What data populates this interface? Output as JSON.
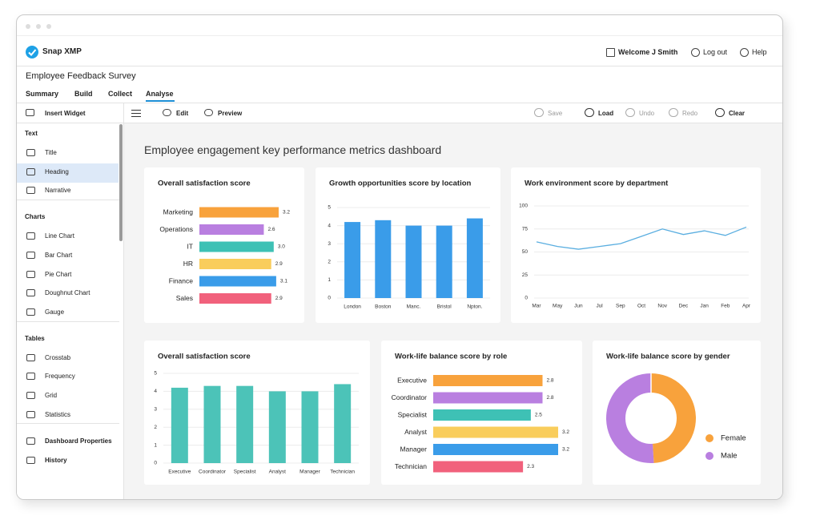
{
  "app": {
    "brand": "Snap XMP",
    "nav": [
      "Welcome J Smith",
      "Log out",
      "Help"
    ],
    "survey_title": "Employee Feedback Survey",
    "tabs": [
      "Summary",
      "Build",
      "Collect",
      "Analyse"
    ],
    "active_tab": "Analyse"
  },
  "toolbar": {
    "insert": "Insert Widget",
    "left": [
      "Edit",
      "Preview"
    ],
    "right": [
      "Save",
      "Load",
      "Undo",
      "Redo",
      "Clear"
    ],
    "disabled": [
      "Save",
      "Undo",
      "Redo"
    ]
  },
  "sidebar": {
    "sections": [
      {
        "title": "Text",
        "items": [
          "Title",
          "Heading",
          "Narrative"
        ]
      },
      {
        "title": "Charts",
        "items": [
          "Line Chart",
          "Bar Chart",
          "Pie Chart",
          "Doughnut Chart",
          "Gauge"
        ]
      },
      {
        "title": "Tables",
        "items": [
          "Crosstab",
          "Frequency",
          "Grid",
          "Statistics"
        ]
      }
    ],
    "selected": "Heading",
    "footer": [
      "Dashboard Properties",
      "History"
    ]
  },
  "dashboard": {
    "title": "Employee engagement key performance metrics dashboard"
  },
  "chart_data": [
    {
      "type": "hbar",
      "title": "Overall satisfaction score",
      "categories": [
        "Marketing",
        "Operations",
        "IT",
        "HR",
        "Finance",
        "Sales"
      ],
      "values": [
        3.2,
        2.6,
        3.0,
        2.9,
        3.1,
        2.9
      ],
      "value_labels": [
        "3.2",
        "2.6",
        "3.0",
        "2.9",
        "3.1",
        "2.9"
      ],
      "colors": [
        "#f8a23c",
        "#b97fe0",
        "#3ec1b5",
        "#f9cd5c",
        "#3a9ce9",
        "#f1617c"
      ]
    },
    {
      "type": "bar",
      "title": "Growth opportunities score by location",
      "categories": [
        "London",
        "Boston",
        "Manc.",
        "Bristol",
        "Npton."
      ],
      "values": [
        4.2,
        4.3,
        4.0,
        4.0,
        4.4
      ],
      "color": "#3a9ce9",
      "ylim": [
        0,
        5
      ],
      "yticks": [
        0,
        1,
        2,
        3,
        4,
        5
      ],
      "grid": true
    },
    {
      "type": "line",
      "title": "Work environment score by department",
      "categories": [
        "Mar",
        "May",
        "Jun",
        "Jul",
        "Sep",
        "Oct",
        "Nov",
        "Dec",
        "Jan",
        "Feb",
        "Apr"
      ],
      "values": [
        61,
        56,
        53,
        56,
        59,
        67,
        75,
        69,
        73,
        68,
        77
      ],
      "color": "#5aaee0",
      "ylim": [
        0,
        100
      ],
      "yticks": [
        0,
        25,
        50,
        75,
        100
      ],
      "grid": true
    },
    {
      "type": "bar",
      "title": "Overall satisfaction score",
      "categories": [
        "Executive",
        "Coordinator",
        "Specialist",
        "Analyst",
        "Manager",
        "Technician"
      ],
      "values": [
        4.2,
        4.3,
        4.3,
        4.0,
        4.0,
        4.4
      ],
      "color": "#4cc3b8",
      "ylim": [
        0,
        5
      ],
      "yticks": [
        0,
        1,
        2,
        3,
        4,
        5
      ],
      "grid": true
    },
    {
      "type": "hbar",
      "title": "Work-life balance score by role",
      "categories": [
        "Executive",
        "Coordinator",
        "Specialist",
        "Analyst",
        "Manager",
        "Technician"
      ],
      "values": [
        2.8,
        2.8,
        2.5,
        3.2,
        3.2,
        2.3
      ],
      "colors": [
        "#f8a23c",
        "#b97fe0",
        "#3ec1b5",
        "#f9cd5c",
        "#3a9ce9",
        "#f1617c"
      ]
    },
    {
      "type": "doughnut",
      "title": "Work-life balance score by gender",
      "categories": [
        "Female",
        "Male"
      ],
      "values": [
        49,
        51
      ],
      "colors": [
        "#f8a23c",
        "#b97fe0"
      ]
    }
  ]
}
